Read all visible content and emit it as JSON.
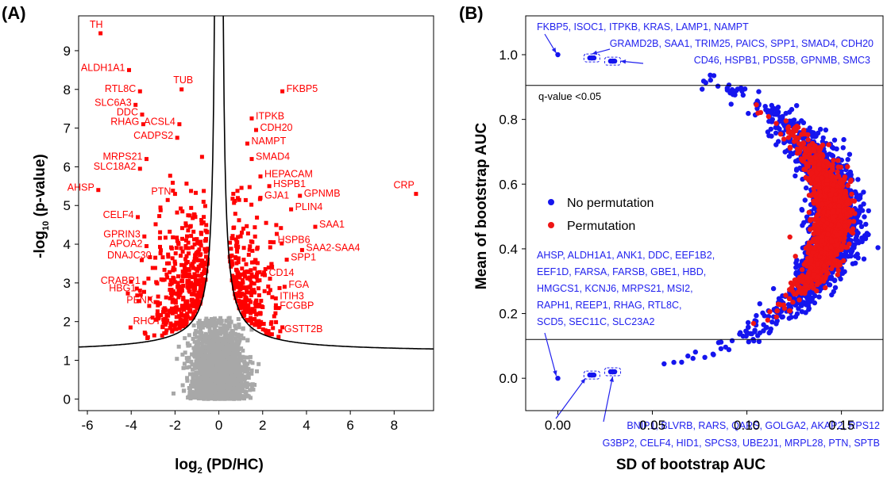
{
  "chart_data": [
    {
      "panel": "(A)",
      "type": "scatter",
      "xlabel_main": "log",
      "xlabel_sub": "2",
      "xlabel_rest": " (PD/HC)",
      "ylabel_pre": "-log",
      "ylabel_sub": "10",
      "ylabel_rest": " (p-value)",
      "xlim": [
        -6.4,
        9.8
      ],
      "ylim": [
        -0.3,
        9.9
      ],
      "xticks": [
        -6,
        -4,
        -2,
        0,
        2,
        4,
        6,
        8
      ],
      "xtick_labels": [
        "-6",
        "-4",
        "-2",
        "0",
        "2",
        "4",
        "6",
        "8"
      ],
      "yticks": [
        0,
        1,
        2,
        3,
        4,
        5,
        6,
        7,
        8,
        9
      ],
      "ytick_labels": [
        "0",
        "1",
        "2",
        "3",
        "4",
        "5",
        "6",
        "7",
        "8",
        "9"
      ],
      "colors": {
        "significant": "#ff0000",
        "nonsignificant": "#a8a8a8",
        "threshold": "#000000"
      },
      "threshold_curve": {
        "baseline": 1.2,
        "c": 0.9,
        "x0": 0.1
      },
      "labeled_points": [
        {
          "gene": "TH",
          "x": -5.4,
          "y": 9.45
        },
        {
          "gene": "ALDH1A1",
          "x": -4.1,
          "y": 8.5
        },
        {
          "gene": "RTL8C",
          "x": -3.6,
          "y": 7.95
        },
        {
          "gene": "TUB",
          "x": -1.7,
          "y": 8.0
        },
        {
          "gene": "SLC6A3",
          "x": -3.8,
          "y": 7.6
        },
        {
          "gene": "DDC",
          "x": -3.5,
          "y": 7.35
        },
        {
          "gene": "RHAG",
          "x": -3.45,
          "y": 7.1
        },
        {
          "gene": "ACSL4",
          "x": -1.8,
          "y": 7.1
        },
        {
          "gene": "CADPS2",
          "x": -1.9,
          "y": 6.75
        },
        {
          "gene": "MRPS21",
          "x": -3.3,
          "y": 6.2
        },
        {
          "gene": "SLC18A2",
          "x": -3.6,
          "y": 5.95
        },
        {
          "gene": "AHSP",
          "x": -5.5,
          "y": 5.4
        },
        {
          "gene": "PTN",
          "x": -2.0,
          "y": 5.3
        },
        {
          "gene": "CELF4",
          "x": -3.7,
          "y": 4.7
        },
        {
          "gene": "GPRIN3",
          "x": -3.4,
          "y": 4.2
        },
        {
          "gene": "APOA2",
          "x": -3.3,
          "y": 3.95
        },
        {
          "gene": "DNAJC30",
          "x": -2.9,
          "y": 3.65
        },
        {
          "gene": "CRABP1",
          "x": -3.4,
          "y": 3.0
        },
        {
          "gene": "HBG1",
          "x": -3.6,
          "y": 2.8
        },
        {
          "gene": "PENK",
          "x": -2.8,
          "y": 2.5
        },
        {
          "gene": "RHOT2",
          "x": -2.2,
          "y": 1.95
        },
        {
          "gene": "FKBP5",
          "x": 2.9,
          "y": 7.95
        },
        {
          "gene": "ITPKB",
          "x": 1.5,
          "y": 7.25
        },
        {
          "gene": "CDH20",
          "x": 1.7,
          "y": 6.95
        },
        {
          "gene": "NAMPT",
          "x": 1.3,
          "y": 6.6
        },
        {
          "gene": "SMAD4",
          "x": 1.5,
          "y": 6.2
        },
        {
          "gene": "HEPACAM",
          "x": 1.9,
          "y": 5.75
        },
        {
          "gene": "HSPB1",
          "x": 2.3,
          "y": 5.5
        },
        {
          "gene": "GPNMB",
          "x": 3.7,
          "y": 5.25
        },
        {
          "gene": "GJA1",
          "x": 1.9,
          "y": 5.2
        },
        {
          "gene": "CRP",
          "x": 9.0,
          "y": 5.3
        },
        {
          "gene": "PLIN4",
          "x": 3.3,
          "y": 4.9
        },
        {
          "gene": "SAA1",
          "x": 4.4,
          "y": 4.45
        },
        {
          "gene": "HSPB6",
          "x": 2.5,
          "y": 4.05
        },
        {
          "gene": "SAA2-SAA4",
          "x": 3.8,
          "y": 3.85
        },
        {
          "gene": "SPP1",
          "x": 3.1,
          "y": 3.6
        },
        {
          "gene": "CD14",
          "x": 2.1,
          "y": 3.2
        },
        {
          "gene": "FGA",
          "x": 3.0,
          "y": 2.9
        },
        {
          "gene": "ITIH3",
          "x": 2.6,
          "y": 2.6
        },
        {
          "gene": "FCGBP",
          "x": 2.6,
          "y": 2.35
        },
        {
          "gene": "GSTT2B",
          "x": 2.8,
          "y": 1.75
        }
      ]
    },
    {
      "panel": "(B)",
      "type": "scatter",
      "xlabel": "SD of bootstrap AUC",
      "ylabel": "Mean of bootstrap AUC",
      "xlim": [
        -0.017,
        0.172
      ],
      "ylim": [
        -0.1,
        1.12
      ],
      "xticks": [
        0.0,
        0.05,
        0.1,
        0.15
      ],
      "xtick_labels": [
        "0.00",
        "0.05",
        "0.10",
        "0.15"
      ],
      "yticks": [
        0.0,
        0.2,
        0.4,
        0.6,
        0.8,
        1.0
      ],
      "ytick_labels": [
        "0.0",
        "0.2",
        "0.4",
        "0.6",
        "0.8",
        "1.0"
      ],
      "thresholds": [
        0.905,
        0.12
      ],
      "threshold_label": "q-value <0.05",
      "colors": {
        "no_permutation": "#1515ee",
        "permutation": "#ee1515"
      },
      "legend": [
        {
          "label": "No permutation",
          "color": "#1515ee"
        },
        {
          "label": "Permutation",
          "color": "#ee1515"
        }
      ],
      "key_points": [
        {
          "x": 0.0,
          "y": 1.0
        },
        {
          "x": 0.018,
          "y": 0.99
        },
        {
          "x": 0.029,
          "y": 0.98
        },
        {
          "x": 0.0,
          "y": 0.0
        },
        {
          "x": 0.018,
          "y": 0.01
        },
        {
          "x": 0.029,
          "y": 0.02
        }
      ],
      "annotations": {
        "top": [
          "FKBP5, ISOC1, ITPKB, KRAS, LAMP1, NAMPT",
          "GRAMD2B, SAA1, TRIM25, PAICS, SPP1, SMAD4, CDH20",
          "CD46, HSPB1, PDS5B, GPNMB, SMC3"
        ],
        "middle": [
          "AHSP, ALDH1A1, ANK1, DDC, EEF1B2,",
          "EEF1D, FARSA, FARSB, GBE1, HBD,",
          "HMGCS1, KCNJ6, MRPS21, MSI2,",
          "RAPH1, REEP1, RHAG, RTL8C,",
          "SCD5, SEC11C, SLC23A2"
        ],
        "bottom": [
          "BNIP1, BLVRB, RARS, QARS, GOLGA2, AKAP2, RPS12",
          "G3BP2, CELF4, HID1, SPCS3, UBE2J1, MRPL28, PTN, SPTB"
        ]
      }
    }
  ]
}
